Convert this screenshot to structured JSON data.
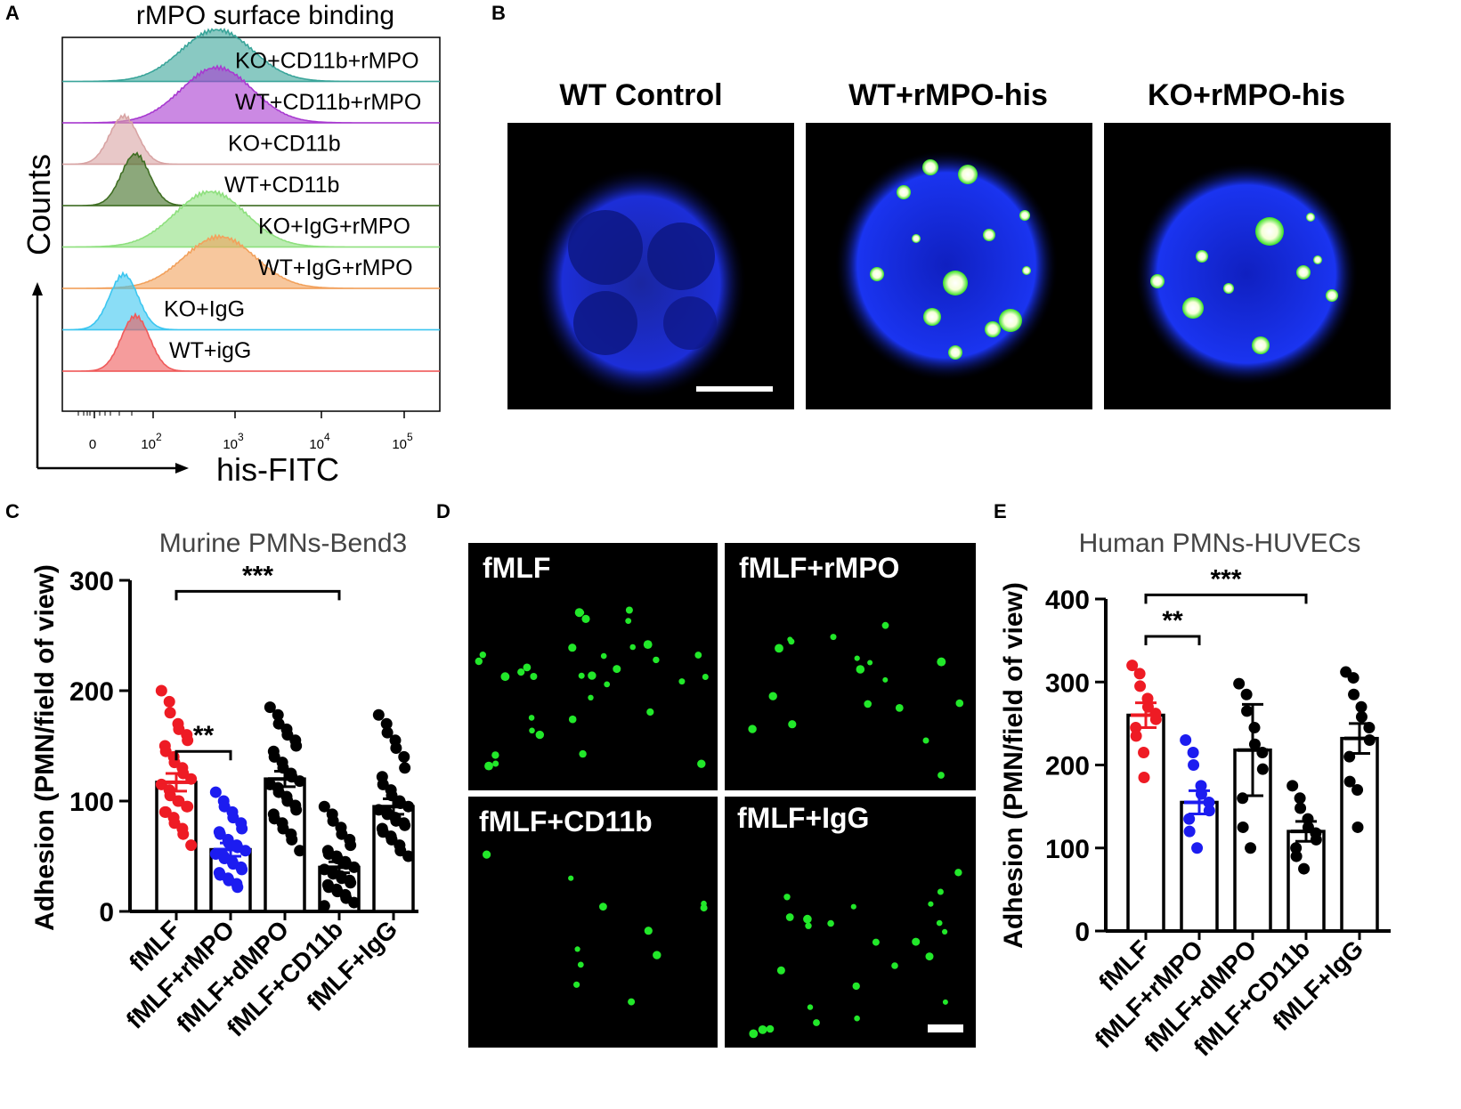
{
  "panels": {
    "a": {
      "letter": "A",
      "title": "rMPO surface binding",
      "ylabel": "Counts",
      "xlabel": "his-FITC",
      "x_ticks": [
        "0",
        "10",
        "10",
        "10",
        "10"
      ],
      "x_tick_exps": [
        "",
        "2",
        "3",
        "4",
        "5"
      ]
    },
    "b": {
      "letter": "B",
      "titles": [
        "WT Control",
        "WT+rMPO-his",
        "KO+rMPO-his"
      ]
    },
    "c": {
      "letter": "C",
      "title": "Murine PMNs-Bend3",
      "ylabel": "Adhesion (PMN/field of view)",
      "sig": [
        "**",
        "***"
      ]
    },
    "d": {
      "letter": "D",
      "labels": [
        "fMLF",
        "fMLF+rMPO",
        "fMLF+CD11b",
        "fMLF+IgG"
      ]
    },
    "e": {
      "letter": "E",
      "title": "Human PMNs-HUVECs",
      "ylabel": "Adhesion (PMN/field of view)",
      "sig": [
        "**",
        "***"
      ]
    }
  },
  "chart_data": [
    {
      "type": "area",
      "panel": "A",
      "title": "rMPO surface binding",
      "xlabel": "his-FITC",
      "ylabel": "Counts",
      "x_scale": "log",
      "x_tick_labels": [
        "0",
        "10^2",
        "10^3",
        "10^4",
        "10^5"
      ],
      "series": [
        {
          "name": "KO+CD11b+rMPO",
          "color": "#3aa59a",
          "peak_fitc": 600
        },
        {
          "name": "WT+CD11b+rMPO",
          "color": "#a83ad0",
          "peak_fitc": 600
        },
        {
          "name": "KO+CD11b",
          "color": "#d8a4a4",
          "peak_fitc": 10
        },
        {
          "name": "WT+CD11b",
          "color": "#3f6e23",
          "peak_fitc": 25
        },
        {
          "name": "KO+IgG+rMPO",
          "color": "#8ee07e",
          "peak_fitc": 500
        },
        {
          "name": "WT+IgG+rMPO",
          "color": "#f2a15c",
          "peak_fitc": 650
        },
        {
          "name": "KO+IgG",
          "color": "#3cc6f0",
          "peak_fitc": 10
        },
        {
          "name": "WT+igG",
          "color": "#ef5a5a",
          "peak_fitc": 25
        }
      ]
    },
    {
      "type": "bar",
      "panel": "C",
      "title": "Murine PMNs-Bend3",
      "ylabel": "Adhesion (PMN/field of view)",
      "ylim": [
        0,
        300
      ],
      "yticks": [
        0,
        100,
        200,
        300
      ],
      "categories": [
        "fMLF",
        "fMLF+rMPO",
        "fMLF+dMPO",
        "fMLF+CD11b",
        "fMLF+IgG"
      ],
      "values": [
        117,
        56,
        120,
        40,
        95
      ],
      "errors": [
        8,
        6,
        7,
        5,
        7
      ],
      "point_colors": [
        "#ee1b24",
        "#1c1cf0",
        "#000000",
        "#000000",
        "#000000"
      ],
      "points": [
        [
          200,
          190,
          180,
          170,
          165,
          160,
          155,
          150,
          145,
          140,
          135,
          130,
          125,
          120,
          115,
          110,
          105,
          100,
          100,
          95,
          95,
          90,
          90,
          85,
          80,
          75,
          70,
          60
        ],
        [
          108,
          100,
          95,
          90,
          85,
          80,
          75,
          72,
          70,
          65,
          62,
          60,
          58,
          55,
          52,
          50,
          48,
          45,
          43,
          40,
          38,
          35,
          33,
          30,
          28,
          25,
          22
        ],
        [
          185,
          178,
          170,
          165,
          160,
          155,
          150,
          145,
          140,
          135,
          130,
          125,
          122,
          118,
          115,
          112,
          108,
          104,
          100,
          96,
          92,
          88,
          84,
          80,
          75,
          70,
          65,
          55
        ],
        [
          95,
          88,
          82,
          76,
          70,
          65,
          60,
          55,
          52,
          50,
          48,
          45,
          43,
          40,
          38,
          36,
          34,
          32,
          30,
          28,
          26,
          24,
          22,
          20,
          18,
          15,
          12,
          8,
          5
        ],
        [
          178,
          170,
          162,
          155,
          148,
          140,
          130,
          122,
          115,
          110,
          105,
          100,
          98,
          95,
          92,
          90,
          88,
          85,
          82,
          80,
          78,
          75,
          72,
          68,
          65,
          60,
          55,
          50
        ]
      ],
      "significance": [
        {
          "from": "fMLF",
          "to": "fMLF+rMPO",
          "label": "**",
          "y": 145
        },
        {
          "from": "fMLF",
          "to": "fMLF+CD11b",
          "label": "***",
          "y": 290
        }
      ]
    },
    {
      "type": "bar",
      "panel": "E",
      "title": "Human PMNs-HUVECs",
      "ylabel": "Adhesion (PMN/field of view)",
      "ylim": [
        0,
        400
      ],
      "yticks": [
        0,
        100,
        200,
        300,
        400
      ],
      "categories": [
        "fMLF",
        "fMLF+rMPO",
        "fMLF+dMPO",
        "fMLF+CD11b",
        "fMLF+IgG"
      ],
      "values": [
        260,
        155,
        218,
        120,
        232
      ],
      "errors": [
        15,
        14,
        55,
        12,
        18
      ],
      "point_colors": [
        "#ee1b24",
        "#1c1cf0",
        "#000000",
        "#000000",
        "#000000"
      ],
      "points": [
        [
          320,
          310,
          295,
          280,
          270,
          262,
          255,
          245,
          235,
          215,
          185
        ],
        [
          230,
          215,
          200,
          175,
          165,
          155,
          145,
          135,
          120,
          100
        ],
        [
          298,
          285,
          265,
          245,
          225,
          215,
          195,
          160,
          125,
          100
        ],
        [
          175,
          160,
          148,
          135,
          125,
          118,
          110,
          100,
          90,
          75
        ],
        [
          312,
          305,
          285,
          270,
          258,
          245,
          230,
          210,
          180,
          170,
          125
        ]
      ],
      "significance": [
        {
          "from": "fMLF",
          "to": "fMLF+rMPO",
          "label": "**",
          "y": 355
        },
        {
          "from": "fMLF",
          "to": "fMLF+CD11b",
          "label": "***",
          "y": 405
        }
      ]
    }
  ]
}
